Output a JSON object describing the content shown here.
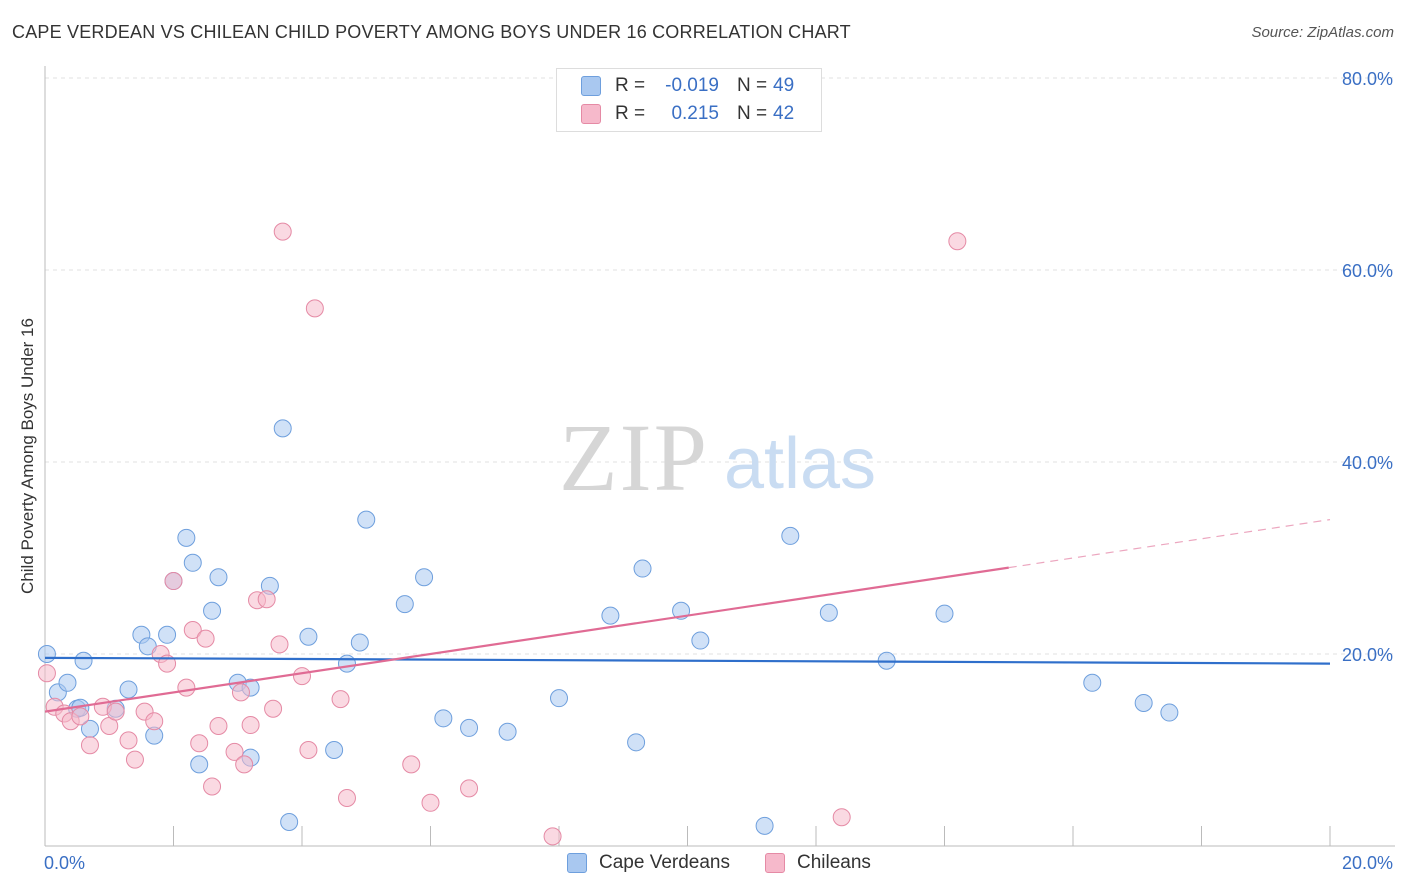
{
  "title": "CAPE VERDEAN VS CHILEAN CHILD POVERTY AMONG BOYS UNDER 16 CORRELATION CHART",
  "source": "Source: ZipAtlas.com",
  "watermark": {
    "zip": "ZIP",
    "atlas": "atlas"
  },
  "legend": {
    "rows": [
      {
        "r_label": "R =",
        "r_value": "-0.019",
        "n_label": "N =",
        "n_value": "49",
        "color": "#a9c8f0"
      },
      {
        "r_label": "R =",
        "r_value": "0.215",
        "n_label": "N =",
        "n_value": "42",
        "color": "#f6b9cb"
      }
    ]
  },
  "bottom_legend": [
    {
      "label": "Cape Verdeans",
      "color": "#a9c8f0"
    },
    {
      "label": "Chileans",
      "color": "#f6b9cb"
    }
  ],
  "chart_data": {
    "type": "scatter",
    "title": "CAPE VERDEAN VS CHILEAN CHILD POVERTY AMONG BOYS UNDER 16 CORRELATION CHART",
    "xlabel": "",
    "ylabel": "Child Poverty Among Boys Under 16",
    "xlim": [
      0,
      20
    ],
    "ylim": [
      0,
      80
    ],
    "x_tick_labels": [
      "0.0%",
      "20.0%"
    ],
    "y_ticks": [
      20,
      40,
      60,
      80
    ],
    "y_tick_labels": [
      "20.0%",
      "40.0%",
      "60.0%",
      "80.0%"
    ],
    "grid": true,
    "series": [
      {
        "name": "Cape Verdeans",
        "color": "#a9c8f0",
        "stroke": "#6e9fdd",
        "trend": {
          "x0": 0,
          "y0": 19.6,
          "x1": 20,
          "y1": 19.0,
          "color": "#2f6fcb"
        },
        "points": [
          [
            0.03,
            20.0
          ],
          [
            0.2,
            16.0
          ],
          [
            0.35,
            17.0
          ],
          [
            0.5,
            14.3
          ],
          [
            0.6,
            19.3
          ],
          [
            0.7,
            12.2
          ],
          [
            1.1,
            14.3
          ],
          [
            1.3,
            16.3
          ],
          [
            1.5,
            22.0
          ],
          [
            1.6,
            20.8
          ],
          [
            1.7,
            11.5
          ],
          [
            1.9,
            22.0
          ],
          [
            2.0,
            27.6
          ],
          [
            2.2,
            32.1
          ],
          [
            2.3,
            29.5
          ],
          [
            2.4,
            8.5
          ],
          [
            2.6,
            24.5
          ],
          [
            2.7,
            28.0
          ],
          [
            3.0,
            17.0
          ],
          [
            3.2,
            16.5
          ],
          [
            3.2,
            9.2
          ],
          [
            3.5,
            27.1
          ],
          [
            3.7,
            43.5
          ],
          [
            3.8,
            2.5
          ],
          [
            4.1,
            21.8
          ],
          [
            4.5,
            10.0
          ],
          [
            4.7,
            19.0
          ],
          [
            4.9,
            21.2
          ],
          [
            5.0,
            34.0
          ],
          [
            5.6,
            25.2
          ],
          [
            5.9,
            28.0
          ],
          [
            6.2,
            13.3
          ],
          [
            6.6,
            12.3
          ],
          [
            7.2,
            11.9
          ],
          [
            8.0,
            15.4
          ],
          [
            8.8,
            24.0
          ],
          [
            9.2,
            10.8
          ],
          [
            9.3,
            28.9
          ],
          [
            9.9,
            24.5
          ],
          [
            10.2,
            21.4
          ],
          [
            11.2,
            2.1
          ],
          [
            11.6,
            32.3
          ],
          [
            12.2,
            24.3
          ],
          [
            13.1,
            19.3
          ],
          [
            14.0,
            24.2
          ],
          [
            16.3,
            17.0
          ],
          [
            17.1,
            14.9
          ],
          [
            17.5,
            13.9
          ],
          [
            0.55,
            14.4
          ]
        ]
      },
      {
        "name": "Chileans",
        "color": "#f6b9cb",
        "stroke": "#e58aa5",
        "trend": {
          "x0": 0,
          "y0": 14.0,
          "x1": 15.0,
          "y1": 29.0,
          "dash_x1": 20,
          "dash_y1": 34.0,
          "color": "#e06b94"
        },
        "points": [
          [
            0.03,
            18.0
          ],
          [
            0.15,
            14.5
          ],
          [
            0.3,
            13.8
          ],
          [
            0.4,
            13.0
          ],
          [
            0.55,
            13.5
          ],
          [
            0.7,
            10.5
          ],
          [
            0.9,
            14.5
          ],
          [
            1.0,
            12.5
          ],
          [
            1.1,
            14.0
          ],
          [
            1.3,
            11.0
          ],
          [
            1.4,
            9.0
          ],
          [
            1.55,
            14.0
          ],
          [
            1.7,
            13.0
          ],
          [
            1.8,
            20.0
          ],
          [
            1.9,
            19.0
          ],
          [
            2.0,
            27.6
          ],
          [
            2.2,
            16.5
          ],
          [
            2.3,
            22.5
          ],
          [
            2.4,
            10.7
          ],
          [
            2.5,
            21.6
          ],
          [
            2.6,
            6.2
          ],
          [
            2.7,
            12.5
          ],
          [
            2.95,
            9.8
          ],
          [
            3.05,
            16.0
          ],
          [
            3.1,
            8.5
          ],
          [
            3.2,
            12.6
          ],
          [
            3.3,
            25.6
          ],
          [
            3.45,
            25.7
          ],
          [
            3.55,
            14.3
          ],
          [
            3.65,
            21.0
          ],
          [
            3.7,
            64.0
          ],
          [
            4.0,
            17.7
          ],
          [
            4.1,
            10.0
          ],
          [
            4.2,
            56.0
          ],
          [
            4.6,
            15.3
          ],
          [
            4.7,
            5.0
          ],
          [
            5.7,
            8.5
          ],
          [
            6.0,
            4.5
          ],
          [
            6.6,
            6.0
          ],
          [
            7.9,
            1.0
          ],
          [
            12.4,
            3.0
          ],
          [
            14.2,
            63.0
          ]
        ]
      }
    ]
  }
}
